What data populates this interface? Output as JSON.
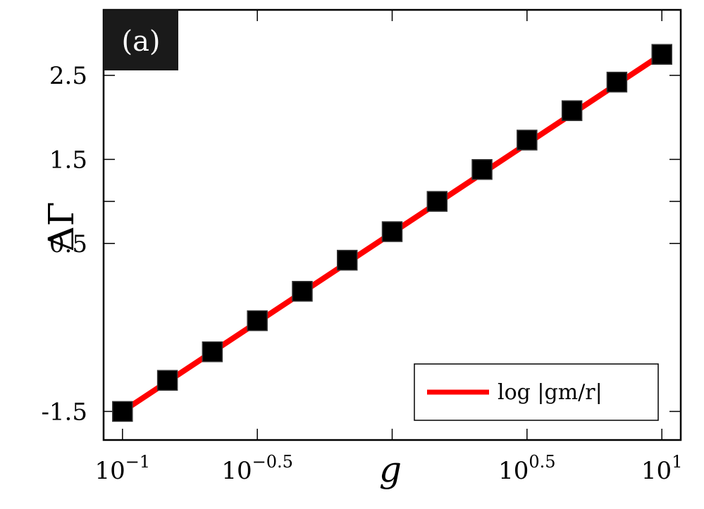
{
  "chart_data": {
    "type": "line",
    "panel_label": "(a)",
    "xlabel": "g",
    "ylabel": "ΔΓ",
    "x_scale": "log",
    "xlim": [
      0.0851,
      11.75
    ],
    "ylim": [
      -1.84,
      3.28
    ],
    "x_ticks": [
      {
        "value": 0.1,
        "base": "10",
        "exp": "−1"
      },
      {
        "value": 0.3162,
        "base": "10",
        "exp": "−0.5"
      },
      {
        "value": 3.162,
        "base": "10",
        "exp": "0.5"
      },
      {
        "value": 10,
        "base": "10",
        "exp": "1"
      }
    ],
    "x_ticks_unlabeled": [
      1
    ],
    "y_ticks": [
      {
        "value": 2.5,
        "label": "2.5"
      },
      {
        "value": 1.5,
        "label": "1.5"
      },
      {
        "value": 1.0,
        "label": ""
      },
      {
        "value": 0.5,
        "label": "0.5"
      },
      {
        "value": -1.5,
        "label": "-1.5"
      }
    ],
    "series": [
      {
        "name": "log |gm/r|",
        "style": "line",
        "color": "#ff0000",
        "x": [
          0.1,
          10
        ],
        "y": [
          -1.5,
          2.75
        ]
      },
      {
        "style": "markers",
        "marker": "square",
        "color": "#000000",
        "x": [
          0.1,
          0.1468,
          0.2154,
          0.3162,
          0.4642,
          0.6813,
          1.0,
          1.468,
          2.154,
          3.162,
          4.642,
          6.813,
          10.0
        ],
        "y": [
          -1.5,
          -1.13,
          -0.79,
          -0.42,
          -0.07,
          0.3,
          0.64,
          1.0,
          1.38,
          1.73,
          2.08,
          2.42,
          2.75
        ]
      }
    ],
    "legend": {
      "position": "bottom-right",
      "entries": [
        "log |gm/r|"
      ]
    }
  }
}
